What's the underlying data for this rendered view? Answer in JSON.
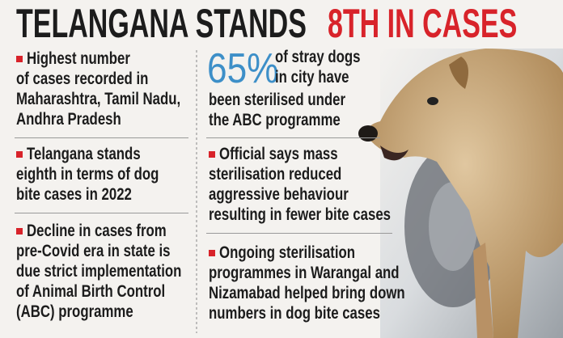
{
  "header": {
    "title_black": "TELANGANA STANDS",
    "title_red": "8TH IN CASES"
  },
  "left_column": {
    "items": [
      {
        "lines": [
          "Highest number",
          "of cases recorded in",
          "Maharashtra, Tamil Nadu,",
          "Andhra Pradesh"
        ]
      },
      {
        "lines": [
          "Telangana stands",
          "eighth in terms of dog",
          "bite cases in 2022"
        ]
      },
      {
        "lines": [
          "Decline in cases from",
          "pre-Covid era in state is",
          "due strict implementation",
          "of Animal Birth Control",
          "(ABC) programme"
        ]
      }
    ]
  },
  "right_column": {
    "stat": {
      "value": "65%",
      "lines": [
        "of stray dogs",
        "in city have",
        "been sterilised under",
        "the ABC programme"
      ]
    },
    "items": [
      {
        "lines": [
          "Official says mass",
          "sterilisation reduced",
          "aggressive behaviour",
          "resulting in fewer bite cases"
        ]
      },
      {
        "lines": [
          "Ongoing sterilisation",
          "programmes in Warangal and",
          "Nizamabad helped bring down",
          "numbers in dog bite cases"
        ]
      }
    ]
  }
}
